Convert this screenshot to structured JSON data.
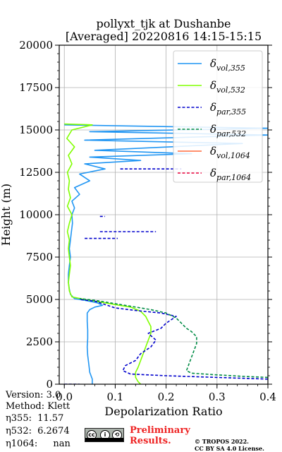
{
  "colors": {
    "vol355": "#2196f3",
    "vol532": "#80ff00",
    "par355": "#0000cd",
    "par532": "#008b45",
    "vol1064": "#ff6a3d",
    "par1064": "#e8003c",
    "grid": "#b0b0b0",
    "prelim": "#ee2222"
  },
  "chart_data": {
    "type": "line",
    "title": [
      "pollyxt_tjk at Dushanbe",
      "[Averaged] 20220816 14:15-15:15"
    ],
    "xlabel": "Depolarization Ratio",
    "ylabel": "Height (m)",
    "xlim": [
      -0.01,
      0.4
    ],
    "ylim": [
      0,
      20000
    ],
    "xticks": [
      0.0,
      0.1,
      0.2,
      0.3,
      0.4
    ],
    "xtick_labels": [
      "0.0",
      "0.1",
      "0.2",
      "0.3",
      "0.4"
    ],
    "yticks": [
      0,
      2500,
      5000,
      7500,
      10000,
      12500,
      15000,
      17500,
      20000
    ],
    "ytick_labels": [
      "0",
      "2500",
      "5000",
      "7500",
      "10000",
      "12500",
      "15000",
      "17500",
      "20000"
    ],
    "grid": true,
    "legend_position": "top-right",
    "legend": [
      {
        "key": "vol355",
        "label": "δ",
        "sub": "vol,355",
        "style": "solid"
      },
      {
        "key": "vol532",
        "label": "δ",
        "sub": "vol,532",
        "style": "solid"
      },
      {
        "key": "par355",
        "label": "δ",
        "sub": "par,355",
        "style": "dashed"
      },
      {
        "key": "par532",
        "label": "δ",
        "sub": "par,532",
        "style": "dashed"
      },
      {
        "key": "vol1064",
        "label": "δ",
        "sub": "vol,1064",
        "style": "solid"
      },
      {
        "key": "par1064",
        "label": "δ",
        "sub": "par,1064",
        "style": "dashed"
      }
    ],
    "series": [
      {
        "key": "vol355",
        "style": "solid",
        "points": [
          [
            0.055,
            0
          ],
          [
            0.055,
            300
          ],
          [
            0.05,
            700
          ],
          [
            0.048,
            1200
          ],
          [
            0.046,
            1700
          ],
          [
            0.045,
            2200
          ],
          [
            0.046,
            2700
          ],
          [
            0.046,
            3200
          ],
          [
            0.045,
            3700
          ],
          [
            0.045,
            4200
          ],
          [
            0.05,
            4400
          ],
          [
            0.06,
            4550
          ],
          [
            0.075,
            4650
          ],
          [
            0.065,
            4800
          ],
          [
            0.04,
            4950
          ],
          [
            0.02,
            5050
          ],
          [
            0.012,
            5300
          ],
          [
            0.01,
            5600
          ],
          [
            0.008,
            6000
          ],
          [
            0.008,
            6500
          ],
          [
            0.01,
            7000
          ],
          [
            0.012,
            7500
          ],
          [
            0.01,
            8000
          ],
          [
            0.012,
            8500
          ],
          [
            0.014,
            9000
          ],
          [
            0.016,
            9500
          ],
          [
            0.015,
            10000
          ],
          [
            0.02,
            10400
          ],
          [
            0.015,
            10800
          ],
          [
            0.03,
            11200
          ],
          [
            0.02,
            11600
          ],
          [
            0.05,
            12000
          ],
          [
            0.03,
            12400
          ],
          [
            0.08,
            12700
          ],
          [
            0.04,
            13000
          ],
          [
            0.15,
            13200
          ],
          [
            0.05,
            13400
          ],
          [
            0.25,
            13600
          ],
          [
            0.06,
            13800
          ],
          [
            0.35,
            14200
          ],
          [
            0.04,
            14400
          ],
          [
            0.4,
            14700
          ],
          [
            0.05,
            14900
          ],
          [
            0.4,
            15100
          ],
          [
            0.0,
            15300
          ]
        ]
      },
      {
        "key": "vol532",
        "style": "solid",
        "points": [
          [
            0.15,
            0
          ],
          [
            0.145,
            150
          ],
          [
            0.14,
            400
          ],
          [
            0.14,
            700
          ],
          [
            0.145,
            1000
          ],
          [
            0.15,
            1400
          ],
          [
            0.155,
            1800
          ],
          [
            0.16,
            2200
          ],
          [
            0.165,
            2600
          ],
          [
            0.17,
            3000
          ],
          [
            0.17,
            3400
          ],
          [
            0.165,
            3700
          ],
          [
            0.16,
            4000
          ],
          [
            0.15,
            4300
          ],
          [
            0.13,
            4550
          ],
          [
            0.08,
            4800
          ],
          [
            0.04,
            5000
          ],
          [
            0.015,
            5150
          ],
          [
            0.01,
            5500
          ],
          [
            0.008,
            6000
          ],
          [
            0.01,
            6500
          ],
          [
            0.012,
            7000
          ],
          [
            0.01,
            7500
          ],
          [
            0.008,
            8000
          ],
          [
            0.01,
            8500
          ],
          [
            0.006,
            9000
          ],
          [
            0.01,
            9500
          ],
          [
            0.015,
            10000
          ],
          [
            0.006,
            10500
          ],
          [
            0.012,
            11000
          ],
          [
            0.008,
            11500
          ],
          [
            0.01,
            12000
          ],
          [
            0.006,
            12500
          ],
          [
            0.015,
            13000
          ],
          [
            0.008,
            13500
          ],
          [
            0.02,
            14000
          ],
          [
            0.005,
            14500
          ],
          [
            0.015,
            15000
          ],
          [
            0.055,
            15300
          ],
          [
            0.0,
            15350
          ]
        ]
      },
      {
        "key": "par355",
        "style": "dashed",
        "points": [
          [
            0.4,
            300
          ],
          [
            0.3,
            400
          ],
          [
            0.2,
            500
          ],
          [
            0.13,
            600
          ],
          [
            0.115,
            800
          ],
          [
            0.12,
            1100
          ],
          [
            0.14,
            1400
          ],
          [
            0.15,
            1800
          ],
          [
            0.17,
            2200
          ],
          [
            0.18,
            2600
          ],
          [
            0.165,
            3000
          ],
          [
            0.19,
            3300
          ],
          [
            0.2,
            3600
          ],
          [
            0.22,
            4000
          ],
          [
            0.19,
            4200
          ],
          [
            0.14,
            4350
          ],
          [
            0.1,
            4500
          ],
          [
            0.08,
            4700
          ],
          [
            0.06,
            4900
          ],
          [
            0.03,
            5000
          ]
        ]
      },
      {
        "key": "par532",
        "style": "dashed",
        "points": [
          [
            0.4,
            400
          ],
          [
            0.36,
            450
          ],
          [
            0.3,
            550
          ],
          [
            0.25,
            650
          ],
          [
            0.24,
            800
          ],
          [
            0.245,
            1200
          ],
          [
            0.25,
            1600
          ],
          [
            0.255,
            2000
          ],
          [
            0.26,
            2400
          ],
          [
            0.26,
            2800
          ],
          [
            0.25,
            3100
          ],
          [
            0.24,
            3300
          ],
          [
            0.23,
            3600
          ],
          [
            0.22,
            3900
          ],
          [
            0.2,
            4200
          ],
          [
            0.17,
            4400
          ],
          [
            0.13,
            4600
          ],
          [
            0.09,
            4800
          ],
          [
            0.06,
            4950
          ],
          [
            0.03,
            5050
          ]
        ]
      }
    ],
    "extra_segments": [
      {
        "key": "par355",
        "y": 8600,
        "x1": 0.04,
        "x2": 0.105
      },
      {
        "key": "par355",
        "y": 9000,
        "x1": 0.07,
        "x2": 0.18
      },
      {
        "key": "par355",
        "y": 9900,
        "x1": 0.07,
        "x2": 0.08
      },
      {
        "key": "par355",
        "y": 12700,
        "x1": 0.11,
        "x2": 0.23
      }
    ],
    "noise_segments": [
      {
        "key": "par355",
        "y": 0,
        "x1": 0.0,
        "x2": 0.03
      }
    ]
  },
  "info": {
    "version": "Version: 3.0",
    "method": "Method: Klett",
    "eta355_label": "η355:",
    "eta355_value": "11.57",
    "eta532_label": "η532:",
    "eta532_value": "6.2674",
    "eta1064_label": "η1064:",
    "eta1064_value": "nan"
  },
  "preliminary": {
    "line1": "Preliminary",
    "line2": "Results."
  },
  "copyright": {
    "line1": "© TROPOS 2022.",
    "line2": "CC BY SA 4.0 License."
  },
  "cc_badge": {
    "main": "cc",
    "by": "i",
    "sa": "⟲"
  }
}
